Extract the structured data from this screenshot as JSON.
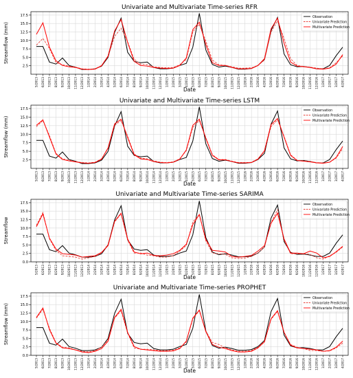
{
  "chart_data": [
    {
      "type": "line",
      "title": "Univariate and Multivariate Time-series RFR",
      "xlabel": "Date",
      "ylabel": "Streamflow (mm)",
      "ylim": [
        0,
        18.5
      ],
      "yticks": [
        "2.5",
        "5.0",
        "7.5",
        "10.0",
        "12.5",
        "15.0",
        "17.5"
      ],
      "grid": true,
      "legend_position": "top-right",
      "categories": [
        "5/2013",
        "6/2013",
        "7/2013",
        "8/2013",
        "9/2013",
        "10/2013",
        "11/2013",
        "12/2013",
        "1/2014",
        "2/2014",
        "3/2014",
        "4/2014",
        "5/2014",
        "6/2014",
        "7/2014",
        "8/2014",
        "9/2014",
        "10/2014",
        "11/2014",
        "12/2014",
        "1/2015",
        "2/2015",
        "3/2015",
        "4/2015",
        "5/2015",
        "6/2015",
        "7/2015",
        "8/2015",
        "9/2015",
        "10/2015",
        "11/2015",
        "12/2015",
        "1/2016",
        "2/2016",
        "3/2016",
        "4/2016",
        "5/2016",
        "6/2016",
        "7/2016",
        "8/2016",
        "9/2016",
        "10/2016",
        "11/2016",
        "12/2016",
        "1/2017",
        "2/2017",
        "3/2017",
        "4/2017"
      ],
      "series": [
        {
          "name": "Observation",
          "color": "#000000",
          "dash": "solid",
          "values": [
            8.2,
            8.2,
            3.6,
            3.0,
            4.8,
            2.6,
            2.1,
            1.4,
            1.4,
            1.6,
            2.4,
            5.0,
            12.4,
            16.6,
            6.5,
            3.8,
            3.4,
            3.6,
            2.0,
            1.6,
            1.6,
            1.8,
            2.6,
            3.2,
            8.0,
            18.0,
            7.2,
            2.9,
            2.1,
            2.4,
            2.0,
            1.5,
            1.5,
            1.7,
            2.6,
            4.4,
            12.9,
            16.8,
            6.0,
            2.8,
            2.2,
            2.3,
            2.0,
            1.6,
            1.6,
            2.6,
            5.5,
            8.0
          ]
        },
        {
          "name": "Univariate Prediction",
          "color": "#e8423a",
          "dash": "dashed",
          "values": [
            8.6,
            10.6,
            7.6,
            3.4,
            2.8,
            2.4,
            2.1,
            1.6,
            1.5,
            1.6,
            2.6,
            5.2,
            11.2,
            13.6,
            9.6,
            4.4,
            3.0,
            2.8,
            2.2,
            2.0,
            1.9,
            2.0,
            2.8,
            4.4,
            12.6,
            14.8,
            9.8,
            4.2,
            2.8,
            2.6,
            2.2,
            1.8,
            1.8,
            1.9,
            2.6,
            4.2,
            12.4,
            15.8,
            10.6,
            4.6,
            2.6,
            2.3,
            2.1,
            1.8,
            1.6,
            1.9,
            3.4,
            5.4
          ]
        },
        {
          "name": "Multivariate Prediction",
          "color": "#ff0000",
          "dash": "solid",
          "values": [
            11.8,
            15.2,
            8.0,
            4.0,
            2.6,
            2.2,
            2.0,
            1.5,
            1.4,
            1.5,
            2.5,
            5.4,
            12.8,
            16.2,
            9.4,
            3.8,
            2.6,
            2.4,
            2.0,
            1.8,
            1.7,
            1.8,
            2.6,
            4.8,
            13.2,
            15.4,
            8.8,
            3.4,
            2.6,
            2.6,
            2.0,
            1.6,
            1.6,
            1.7,
            2.6,
            4.6,
            13.4,
            16.6,
            9.2,
            3.6,
            2.4,
            2.2,
            2.0,
            1.6,
            1.5,
            1.8,
            3.0,
            5.8
          ]
        }
      ]
    },
    {
      "type": "line",
      "title": "Univariate and Multivariate Time-series LSTM",
      "xlabel": "Date",
      "ylabel": "Streamflow (mm)",
      "ylim": [
        0,
        18.5
      ],
      "yticks": [
        "2.5",
        "5.0",
        "7.5",
        "10.0",
        "12.5",
        "15.0",
        "17.5"
      ],
      "grid": true,
      "legend_position": "top-right",
      "categories": [
        "5/2013",
        "6/2013",
        "7/2013",
        "8/2013",
        "9/2013",
        "10/2013",
        "11/2013",
        "12/2013",
        "1/2014",
        "2/2014",
        "3/2014",
        "4/2014",
        "5/2014",
        "6/2014",
        "7/2014",
        "8/2014",
        "9/2014",
        "10/2014",
        "11/2014",
        "12/2014",
        "1/2015",
        "2/2015",
        "3/2015",
        "4/2015",
        "5/2015",
        "6/2015",
        "7/2015",
        "8/2015",
        "9/2015",
        "10/2015",
        "11/2015",
        "12/2015",
        "1/2016",
        "2/2016",
        "3/2016",
        "4/2016",
        "5/2016",
        "6/2016",
        "7/2016",
        "8/2016",
        "9/2016",
        "10/2016",
        "11/2016",
        "12/2016",
        "1/2017",
        "2/2017",
        "3/2017",
        "4/2017"
      ],
      "series": [
        {
          "name": "Observation",
          "color": "#000000",
          "dash": "solid",
          "values": [
            8.2,
            8.2,
            3.6,
            3.0,
            4.8,
            2.6,
            2.1,
            1.4,
            1.4,
            1.6,
            2.4,
            5.0,
            12.4,
            16.6,
            6.5,
            3.8,
            3.4,
            3.6,
            2.0,
            1.6,
            1.6,
            1.8,
            2.6,
            3.2,
            8.0,
            18.0,
            7.2,
            2.9,
            2.1,
            2.4,
            2.0,
            1.5,
            1.5,
            1.7,
            2.6,
            4.4,
            12.9,
            16.8,
            6.0,
            2.8,
            2.2,
            2.3,
            2.0,
            1.6,
            1.6,
            2.6,
            5.5,
            8.0
          ]
        },
        {
          "name": "Univariate Prediction",
          "color": "#e8423a",
          "dash": "dashed",
          "values": [
            12.2,
            14.0,
            9.6,
            4.4,
            2.8,
            2.4,
            2.0,
            1.7,
            1.6,
            1.8,
            2.8,
            5.8,
            12.6,
            14.0,
            9.4,
            4.2,
            3.0,
            2.8,
            2.2,
            1.8,
            1.7,
            1.9,
            2.8,
            5.2,
            12.0,
            14.0,
            9.0,
            4.0,
            2.6,
            2.6,
            2.1,
            1.7,
            1.7,
            1.8,
            2.8,
            5.0,
            12.2,
            14.2,
            9.4,
            4.0,
            2.4,
            2.2,
            2.0,
            1.7,
            1.6,
            1.8,
            3.0,
            5.8
          ]
        },
        {
          "name": "Multivariate Prediction",
          "color": "#ff0000",
          "dash": "solid",
          "values": [
            12.6,
            14.2,
            9.2,
            4.2,
            2.6,
            2.2,
            1.9,
            1.6,
            1.5,
            1.7,
            2.7,
            6.0,
            13.0,
            14.4,
            9.0,
            4.0,
            2.8,
            2.6,
            2.0,
            1.7,
            1.6,
            1.8,
            2.7,
            5.4,
            12.6,
            14.4,
            8.8,
            3.8,
            2.5,
            2.5,
            2.0,
            1.6,
            1.6,
            1.7,
            2.7,
            5.2,
            12.8,
            14.6,
            9.2,
            3.8,
            2.3,
            2.1,
            1.9,
            1.6,
            1.5,
            1.8,
            3.2,
            6.4
          ]
        }
      ]
    },
    {
      "type": "line",
      "title": "Univariate and Multivariate Time-series SARIMA",
      "xlabel": "Date",
      "ylabel": "Streamflow",
      "ylim": [
        0,
        18.5
      ],
      "yticks": [
        "0.0",
        "2.5",
        "5.0",
        "7.5",
        "10.0",
        "12.5",
        "15.0",
        "17.5"
      ],
      "grid": true,
      "legend_position": "top-right",
      "categories": [
        "5/2013",
        "6/2013",
        "7/2013",
        "8/2013",
        "9/2013",
        "10/2013",
        "11/2013",
        "12/2013",
        "1/2014",
        "2/2014",
        "3/2014",
        "4/2014",
        "5/2014",
        "6/2014",
        "7/2014",
        "8/2014",
        "9/2014",
        "10/2014",
        "11/2014",
        "12/2014",
        "1/2015",
        "2/2015",
        "3/2015",
        "4/2015",
        "5/2015",
        "6/2015",
        "7/2015",
        "8/2015",
        "9/2015",
        "10/2015",
        "11/2015",
        "12/2015",
        "1/2016",
        "2/2016",
        "3/2016",
        "4/2016",
        "5/2016",
        "6/2016",
        "7/2016",
        "8/2016",
        "9/2016",
        "10/2016",
        "11/2016",
        "12/2016",
        "1/2017",
        "2/2017",
        "3/2017",
        "4/2017"
      ],
      "series": [
        {
          "name": "Observation",
          "color": "#000000",
          "dash": "solid",
          "values": [
            8.2,
            8.2,
            3.6,
            3.0,
            4.8,
            2.6,
            2.1,
            1.4,
            1.4,
            1.6,
            2.4,
            5.0,
            12.4,
            16.6,
            6.5,
            3.8,
            3.4,
            3.6,
            2.0,
            1.6,
            1.6,
            1.8,
            2.6,
            3.2,
            8.0,
            18.0,
            7.2,
            2.9,
            2.1,
            2.4,
            2.0,
            1.5,
            1.5,
            1.7,
            2.6,
            4.4,
            12.9,
            16.8,
            6.0,
            2.8,
            2.2,
            2.3,
            2.0,
            1.6,
            1.6,
            2.6,
            5.5,
            8.0
          ]
        },
        {
          "name": "Univariate Prediction",
          "color": "#e8423a",
          "dash": "dashed",
          "values": [
            10.8,
            14.6,
            6.8,
            3.4,
            1.8,
            1.6,
            1.4,
            0.8,
            1.2,
            1.6,
            2.6,
            5.2,
            11.8,
            14.2,
            6.4,
            2.6,
            2.6,
            2.0,
            1.8,
            1.4,
            1.4,
            1.8,
            3.2,
            4.8,
            11.8,
            14.0,
            6.2,
            2.6,
            2.4,
            2.2,
            1.2,
            1.0,
            1.1,
            1.6,
            2.6,
            4.4,
            11.6,
            15.4,
            6.4,
            2.4,
            2.4,
            2.4,
            2.2,
            1.2,
            0.8,
            1.8,
            2.8,
            4.4
          ]
        },
        {
          "name": "Multivariate Prediction",
          "color": "#ff0000",
          "dash": "solid",
          "values": [
            10.4,
            14.2,
            7.0,
            3.8,
            2.4,
            2.2,
            2.0,
            1.4,
            1.6,
            1.8,
            2.8,
            4.8,
            12.0,
            14.4,
            6.8,
            2.9,
            2.4,
            2.6,
            1.9,
            1.8,
            2.0,
            2.4,
            3.4,
            5.2,
            11.0,
            14.0,
            6.6,
            3.4,
            3.2,
            2.9,
            1.6,
            1.4,
            1.6,
            1.9,
            3.2,
            4.8,
            11.4,
            14.4,
            6.8,
            2.6,
            2.6,
            2.4,
            3.2,
            2.6,
            1.2,
            1.6,
            3.0,
            4.6
          ]
        }
      ]
    },
    {
      "type": "line",
      "title": "Univariate and Multivariate Time-series PROPHET",
      "xlabel": "Date",
      "ylabel": "Streamflow (mm)",
      "ylim": [
        0,
        18.5
      ],
      "yticks": [
        "0.0",
        "2.5",
        "5.0",
        "7.5",
        "10.0",
        "12.5",
        "15.0",
        "17.5"
      ],
      "grid": true,
      "legend_position": "top-right",
      "categories": [
        "5/2013",
        "6/2013",
        "7/2013",
        "8/2013",
        "9/2013",
        "10/2013",
        "11/2013",
        "12/2013",
        "1/2014",
        "2/2014",
        "3/2014",
        "4/2014",
        "5/2014",
        "6/2014",
        "7/2014",
        "8/2014",
        "9/2014",
        "10/2014",
        "11/2014",
        "12/2014",
        "1/2015",
        "2/2015",
        "3/2015",
        "4/2015",
        "5/2015",
        "6/2015",
        "7/2015",
        "8/2015",
        "9/2015",
        "10/2015",
        "11/2015",
        "12/2015",
        "1/2016",
        "2/2016",
        "3/2016",
        "4/2016",
        "5/2016",
        "6/2016",
        "7/2016",
        "8/2016",
        "9/2016",
        "10/2016",
        "11/2016",
        "12/2016",
        "1/2017",
        "2/2017",
        "3/2017",
        "4/2017"
      ],
      "series": [
        {
          "name": "Observation",
          "color": "#000000",
          "dash": "solid",
          "values": [
            8.2,
            8.2,
            3.6,
            3.0,
            4.8,
            2.6,
            2.1,
            1.4,
            1.4,
            1.6,
            2.4,
            5.0,
            12.4,
            16.6,
            6.5,
            3.8,
            3.4,
            3.6,
            2.0,
            1.6,
            1.6,
            1.8,
            2.6,
            3.2,
            8.0,
            18.0,
            7.2,
            2.9,
            2.1,
            2.4,
            2.0,
            1.5,
            1.5,
            1.7,
            2.6,
            4.4,
            12.9,
            16.8,
            6.0,
            2.8,
            2.2,
            2.3,
            2.0,
            1.6,
            1.6,
            2.6,
            5.5,
            8.0
          ]
        },
        {
          "name": "Univariate Prediction",
          "color": "#e8423a",
          "dash": "dashed",
          "values": [
            11.0,
            13.6,
            8.0,
            3.8,
            2.4,
            2.2,
            1.6,
            1.2,
            1.0,
            1.4,
            2.4,
            4.6,
            11.0,
            13.2,
            6.6,
            2.2,
            1.8,
            1.8,
            1.6,
            1.4,
            1.4,
            1.5,
            2.2,
            4.0,
            10.8,
            13.2,
            7.2,
            3.8,
            3.2,
            2.2,
            1.6,
            1.2,
            1.2,
            1.4,
            2.4,
            4.2,
            10.6,
            13.0,
            6.8,
            3.2,
            2.4,
            2.0,
            1.4,
            1.4,
            1.2,
            1.3,
            2.2,
            3.6
          ]
        },
        {
          "name": "Multivariate Prediction",
          "color": "#ff0000",
          "dash": "solid",
          "values": [
            11.2,
            14.0,
            7.6,
            3.6,
            2.2,
            2.0,
            1.6,
            1.0,
            0.8,
            1.2,
            2.0,
            4.2,
            11.2,
            13.6,
            6.8,
            2.6,
            1.8,
            1.6,
            1.4,
            1.2,
            1.2,
            1.3,
            2.0,
            4.2,
            11.0,
            13.4,
            7.0,
            3.2,
            2.4,
            2.0,
            1.4,
            1.0,
            1.0,
            1.2,
            2.2,
            4.0,
            10.8,
            13.2,
            6.8,
            3.0,
            2.2,
            2.0,
            1.8,
            1.6,
            1.2,
            1.4,
            2.4,
            4.2
          ]
        }
      ]
    }
  ]
}
